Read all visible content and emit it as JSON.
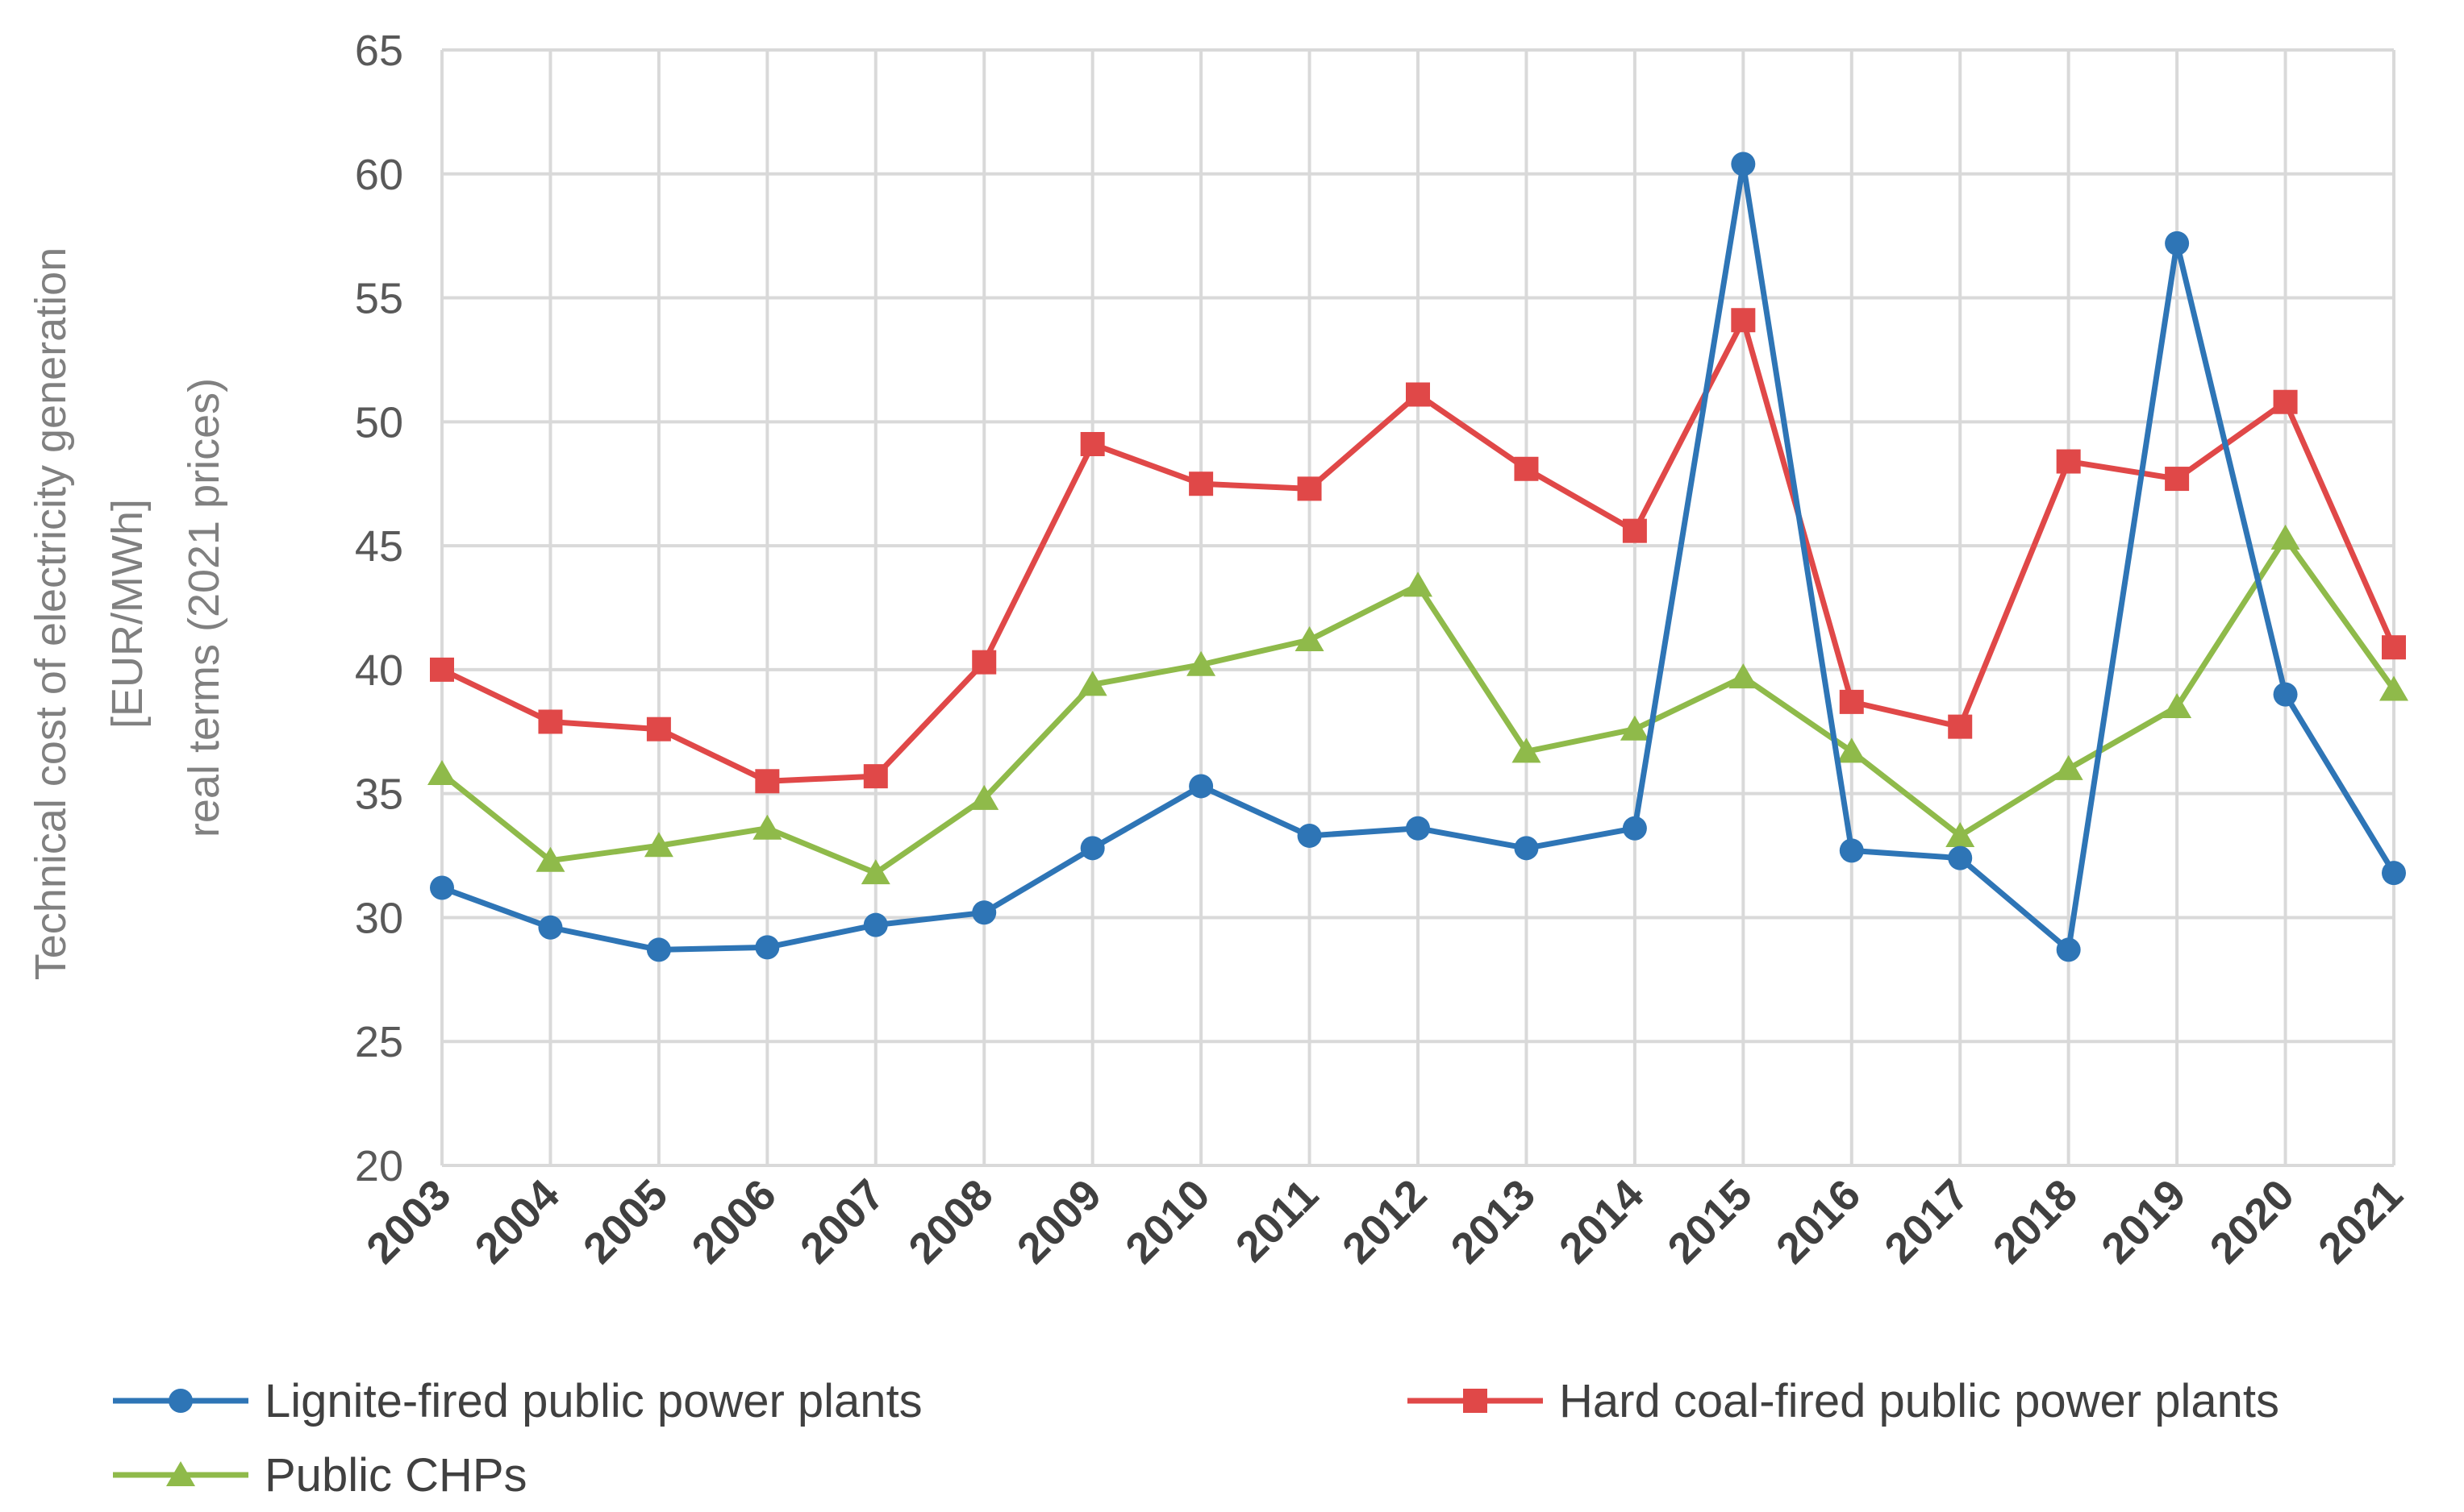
{
  "chart_data": {
    "type": "line",
    "title": "",
    "ylabel_lines": [
      "Technical cost of electricity generation",
      "[EUR/MWh]",
      "real terms (2021 prices)"
    ],
    "xlabel": "",
    "ylim": [
      20,
      65
    ],
    "yticks": [
      20,
      25,
      30,
      35,
      40,
      45,
      50,
      55,
      60,
      65
    ],
    "grid": true,
    "legend_position": "bottom",
    "categories": [
      "2003",
      "2004",
      "2005",
      "2006",
      "2007",
      "2008",
      "2009",
      "2010",
      "2011",
      "2012",
      "2013",
      "2014",
      "2015",
      "2016",
      "2017",
      "2018",
      "2019",
      "2020",
      "2021"
    ],
    "series": [
      {
        "name": "Lignite-fired public power plants",
        "color": "#2e75b6",
        "marker": "circle",
        "values": [
          31.2,
          29.6,
          28.7,
          28.8,
          29.7,
          30.2,
          32.8,
          35.3,
          33.3,
          33.6,
          32.8,
          33.6,
          60.4,
          32.7,
          32.4,
          28.7,
          57.2,
          39.0,
          31.8
        ]
      },
      {
        "name": "Hard coal-fired public power plants",
        "color": "#e04848",
        "marker": "square",
        "values": [
          40.0,
          37.9,
          37.6,
          35.5,
          35.7,
          40.3,
          49.1,
          47.5,
          47.3,
          51.1,
          48.1,
          45.6,
          54.1,
          38.7,
          37.7,
          48.4,
          47.7,
          50.8,
          40.9
        ]
      },
      {
        "name": "Public CHPs",
        "color": "#8fba4a",
        "marker": "triangle",
        "values": [
          35.8,
          32.3,
          32.9,
          33.6,
          31.8,
          34.8,
          39.4,
          40.2,
          41.2,
          43.4,
          36.7,
          37.6,
          39.7,
          36.7,
          33.3,
          36.0,
          38.5,
          45.3,
          39.2
        ]
      }
    ]
  }
}
